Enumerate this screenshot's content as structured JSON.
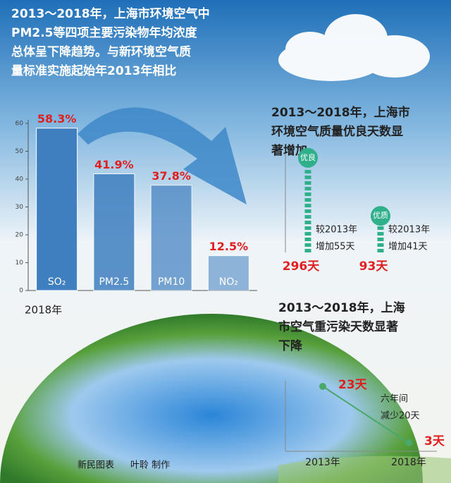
{
  "headline": [
    "2013～2018年，上海市环境空气中",
    "PM2.5等四项主要污染物年均浓度",
    "总体呈下降趋势。与新环境空气质",
    "量标准实施起始年2013年相比"
  ],
  "credit": [
    "新民图表",
    "叶聆 制作"
  ],
  "chart_data": [
    {
      "type": "bar",
      "categories": [
        "SO₂",
        "PM2.5",
        "PM10",
        "NO₂"
      ],
      "values": [
        58.3,
        41.9,
        37.8,
        12.5
      ],
      "value_labels": [
        "58.3%",
        "41.9%",
        "37.8%",
        "12.5%"
      ],
      "x_label": "2018年",
      "ylim": [
        0,
        60
      ],
      "yticks": [
        0,
        10,
        20,
        30,
        40,
        50,
        60
      ],
      "color": "#3f7fc0"
    },
    {
      "type": "dots",
      "title": [
        "2013～2018年，上海市",
        "环境空气质量优良天数显",
        "著增加"
      ],
      "categories": [
        "优良",
        "优质"
      ],
      "values": [
        296,
        93
      ],
      "value_labels": [
        "296天",
        "93天"
      ],
      "annotations": [
        [
          "较2013年",
          "增加55天"
        ],
        [
          "较2013年",
          "增加41天"
        ]
      ],
      "ylim": [
        0,
        320
      ],
      "color": "#2fb08a"
    },
    {
      "type": "line",
      "title": [
        "2013～2018年，上海",
        "市空气重污染天数显著",
        "下降"
      ],
      "x": [
        "2013年",
        "2018年"
      ],
      "values": [
        23,
        3
      ],
      "value_labels": [
        "23天",
        "3天"
      ],
      "annotation": [
        "六年间",
        "减少20天"
      ],
      "ylim": [
        0,
        25
      ],
      "color": "#4aa86a"
    }
  ]
}
